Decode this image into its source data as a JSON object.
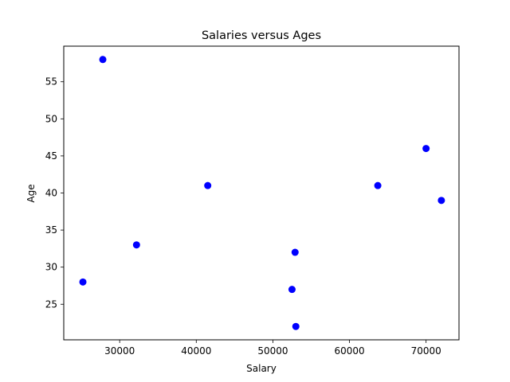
{
  "chart_data": {
    "type": "scatter",
    "title": "Salaries versus Ages",
    "xlabel": "Salary",
    "ylabel": "Age",
    "xlim": [
      22700,
      74300
    ],
    "ylim": [
      20.2,
      59.8
    ],
    "xticks": [
      30000,
      40000,
      50000,
      60000,
      70000
    ],
    "yticks": [
      25,
      30,
      35,
      40,
      45,
      50,
      55
    ],
    "grid": false,
    "marker_color": "#0000ff",
    "series": [
      {
        "points": [
          {
            "x": 27800,
            "y": 58
          },
          {
            "x": 25200,
            "y": 28
          },
          {
            "x": 32200,
            "y": 33
          },
          {
            "x": 41500,
            "y": 41
          },
          {
            "x": 52500,
            "y": 27
          },
          {
            "x": 52900,
            "y": 32
          },
          {
            "x": 53000,
            "y": 22
          },
          {
            "x": 63700,
            "y": 41
          },
          {
            "x": 70000,
            "y": 46
          },
          {
            "x": 72000,
            "y": 39
          }
        ]
      }
    ]
  }
}
